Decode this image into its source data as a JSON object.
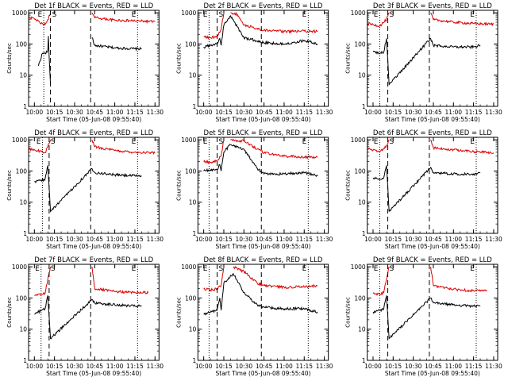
{
  "colors": {
    "events": "#000000",
    "lld": "#dd0000",
    "axes": "#000000"
  },
  "shared": {
    "ylabel": "Counts/sec",
    "xlabel": "Start Time (05-Jun-08 09:55:40)",
    "x_ticks": [
      "10:00",
      "10:15",
      "10:30",
      "10:45",
      "11:00",
      "11:15",
      "11:30"
    ],
    "y_ticks": [
      "1",
      "10",
      "100",
      "1000"
    ],
    "dotted_markers": [
      "E",
      "E"
    ],
    "dashed_marker": "S"
  },
  "chart_data": [
    {
      "type": "line",
      "title": "Det 1f BLACK = Events, RED = LLD",
      "xlim": [
        "09:55:40",
        "11:33:00"
      ],
      "ylim": [
        1,
        1200
      ],
      "y_scale": "log",
      "series": [
        {
          "name": "Events",
          "x": [
            "10:00",
            "10:03",
            "10:06",
            "10:08",
            "10:10",
            "10:10:30",
            "10:11",
            "10:12",
            "10:13",
            "10:43",
            "10:45",
            "11:00",
            "11:15",
            "11:20"
          ],
          "y": [
            null,
            20,
            50,
            50,
            60,
            180,
            40,
            5,
            null,
            160,
            90,
            75,
            70,
            70
          ]
        },
        {
          "name": "LLD",
          "x": [
            "09:56",
            "10:00",
            "10:05",
            "10:08",
            "10:10",
            "10:12",
            "10:43",
            "10:45",
            "11:00",
            "11:15",
            "11:30"
          ],
          "y": [
            700,
            650,
            450,
            420,
            600,
            1000,
            1000,
            700,
            580,
            550,
            520
          ]
        }
      ],
      "markers": {
        "dotted": [
          "10:07",
          "11:17"
        ],
        "dashed": [
          "10:12",
          "10:42"
        ]
      }
    },
    {
      "type": "line",
      "title": "Det 2f BLACK = Events, RED = LLD",
      "xlim": [
        "09:55:40",
        "11:33:00"
      ],
      "ylim": [
        1,
        1200
      ],
      "y_scale": "log",
      "series": [
        {
          "name": "Events",
          "x": [
            "10:00",
            "10:05",
            "10:10",
            "10:12",
            "10:13",
            "10:15",
            "10:20",
            "10:30",
            "10:45",
            "11:00",
            "11:15",
            "11:25"
          ],
          "y": [
            80,
            90,
            100,
            150,
            90,
            400,
            800,
            160,
            110,
            100,
            130,
            100
          ]
        },
        {
          "name": "LLD",
          "x": [
            "10:00",
            "10:05",
            "10:10",
            "10:13",
            "10:15",
            "10:20",
            "10:25",
            "10:30",
            "10:45",
            "11:00",
            "11:15",
            "11:25"
          ],
          "y": [
            170,
            160,
            170,
            300,
            1000,
            1000,
            900,
            400,
            280,
            250,
            260,
            250
          ]
        }
      ],
      "markers": {
        "dotted": [
          "10:04",
          "11:18"
        ],
        "dashed": [
          "10:10",
          "10:43"
        ]
      }
    },
    {
      "type": "line",
      "title": "Det 3f BLACK = Events, RED = LLD",
      "xlim": [
        "09:55:40",
        "11:33:00"
      ],
      "ylim": [
        1,
        1200
      ],
      "y_scale": "log",
      "series": [
        {
          "name": "Events",
          "x": [
            "10:00",
            "10:05",
            "10:08",
            "10:10",
            "10:11",
            "10:12",
            "10:43",
            "10:45",
            "11:00",
            "11:15",
            "11:20"
          ],
          "y": [
            60,
            50,
            55,
            150,
            30,
            5,
            150,
            90,
            80,
            80,
            90
          ]
        },
        {
          "name": "LLD",
          "x": [
            "09:56",
            "10:00",
            "10:05",
            "10:10",
            "10:12",
            "10:43",
            "10:45",
            "11:00",
            "11:15",
            "11:30"
          ],
          "y": [
            450,
            420,
            380,
            600,
            1000,
            1000,
            600,
            500,
            450,
            430
          ]
        }
      ],
      "markers": {
        "dotted": [
          "10:05",
          "11:17"
        ],
        "dashed": [
          "10:11",
          "10:42"
        ]
      }
    },
    {
      "type": "line",
      "title": "Det 4f BLACK = Events, RED = LLD",
      "xlim": [
        "09:55:40",
        "11:33:00"
      ],
      "ylim": [
        1,
        1200
      ],
      "y_scale": "log",
      "series": [
        {
          "name": "Events",
          "x": [
            "10:00",
            "10:05",
            "10:08",
            "10:10",
            "10:11",
            "10:12",
            "10:43",
            "10:45",
            "11:00",
            "11:15",
            "11:20"
          ],
          "y": [
            45,
            50,
            55,
            150,
            30,
            5,
            120,
            90,
            75,
            70,
            70
          ]
        },
        {
          "name": "LLD",
          "x": [
            "09:56",
            "10:00",
            "10:05",
            "10:08",
            "10:10",
            "10:12",
            "10:43",
            "10:45",
            "11:00",
            "11:15",
            "11:30"
          ],
          "y": [
            500,
            480,
            420,
            380,
            600,
            1000,
            1000,
            600,
            450,
            400,
            380
          ]
        }
      ],
      "markers": {
        "dotted": [
          "10:06",
          "11:17"
        ],
        "dashed": [
          "10:11",
          "10:42"
        ]
      }
    },
    {
      "type": "line",
      "title": "Det 5f BLACK = Events, RED = LLD",
      "xlim": [
        "09:55:40",
        "11:33:00"
      ],
      "ylim": [
        1,
        1200
      ],
      "y_scale": "log",
      "series": [
        {
          "name": "Events",
          "x": [
            "10:00",
            "10:05",
            "10:10",
            "10:12",
            "10:13",
            "10:15",
            "10:20",
            "10:30",
            "10:40",
            "10:45",
            "11:00",
            "11:15",
            "11:25"
          ],
          "y": [
            100,
            110,
            110,
            160,
            100,
            400,
            700,
            500,
            120,
            80,
            80,
            90,
            70
          ]
        },
        {
          "name": "LLD",
          "x": [
            "10:00",
            "10:05",
            "10:10",
            "10:13",
            "10:15",
            "10:20",
            "10:30",
            "10:40",
            "10:45",
            "11:00",
            "11:15",
            "11:25"
          ],
          "y": [
            200,
            190,
            220,
            300,
            1000,
            1000,
            900,
            500,
            380,
            300,
            280,
            280
          ]
        }
      ],
      "markers": {
        "dotted": [
          "10:04",
          "11:18"
        ],
        "dashed": [
          "10:10",
          "10:43"
        ]
      }
    },
    {
      "type": "line",
      "title": "Det 6f BLACK = Events, RED = LLD",
      "xlim": [
        "09:55:40",
        "11:33:00"
      ],
      "ylim": [
        1,
        1200
      ],
      "y_scale": "log",
      "series": [
        {
          "name": "Events",
          "x": [
            "10:00",
            "10:05",
            "10:08",
            "10:10",
            "10:11",
            "10:12",
            "10:43",
            "10:45",
            "11:00",
            "11:15",
            "11:20"
          ],
          "y": [
            60,
            55,
            60,
            150,
            30,
            5,
            130,
            90,
            80,
            80,
            90
          ]
        },
        {
          "name": "LLD",
          "x": [
            "09:56",
            "10:00",
            "10:05",
            "10:10",
            "10:12",
            "10:43",
            "10:45",
            "11:00",
            "11:15",
            "11:30"
          ],
          "y": [
            500,
            460,
            400,
            650,
            1000,
            1000,
            550,
            480,
            420,
            380
          ]
        }
      ],
      "markers": {
        "dotted": [
          "10:05",
          "11:17"
        ],
        "dashed": [
          "10:11",
          "10:42"
        ]
      }
    },
    {
      "type": "line",
      "title": "Det 7f BLACK = Events, RED = LLD",
      "xlim": [
        "09:55:40",
        "11:33:00"
      ],
      "ylim": [
        1,
        1200
      ],
      "y_scale": "log",
      "series": [
        {
          "name": "Events",
          "x": [
            "10:00",
            "10:05",
            "10:08",
            "10:10",
            "10:11",
            "10:12",
            "10:43",
            "10:45",
            "11:00",
            "11:15",
            "11:20"
          ],
          "y": [
            30,
            40,
            45,
            120,
            25,
            5,
            90,
            70,
            60,
            55,
            55
          ]
        },
        {
          "name": "LLD",
          "x": [
            "10:00",
            "10:05",
            "10:08",
            "10:10",
            "10:12",
            "10:43",
            "10:45",
            "11:00",
            "11:15",
            "11:25"
          ],
          "y": [
            120,
            130,
            140,
            400,
            1000,
            1000,
            200,
            160,
            150,
            150
          ]
        }
      ],
      "markers": {
        "dotted": [
          "10:05",
          "11:17"
        ],
        "dashed": [
          "10:11",
          "10:42"
        ]
      }
    },
    {
      "type": "line",
      "title": "Det 8f BLACK = Events, RED = LLD",
      "xlim": [
        "09:55:40",
        "11:33:00"
      ],
      "ylim": [
        1,
        1200
      ],
      "y_scale": "log",
      "series": [
        {
          "name": "Events",
          "x": [
            "10:00",
            "10:05",
            "10:10",
            "10:12",
            "10:13",
            "10:15",
            "10:22",
            "10:30",
            "10:40",
            "10:45",
            "11:00",
            "11:15",
            "11:25"
          ],
          "y": [
            30,
            35,
            40,
            100,
            40,
            300,
            600,
            150,
            60,
            50,
            45,
            45,
            35
          ]
        },
        {
          "name": "LLD",
          "x": [
            "10:00",
            "10:05",
            "10:10",
            "10:13",
            "10:15",
            "10:22",
            "10:30",
            "10:40",
            "10:45",
            "11:00",
            "11:15",
            "11:25"
          ],
          "y": [
            200,
            180,
            200,
            250,
            1000,
            1000,
            700,
            300,
            250,
            220,
            230,
            250
          ]
        }
      ],
      "markers": {
        "dotted": [
          "10:04",
          "11:18"
        ],
        "dashed": [
          "10:10",
          "10:43"
        ]
      }
    },
    {
      "type": "line",
      "title": "Det 9f BLACK = Events, RED = LLD",
      "xlim": [
        "09:55:40",
        "11:33:00"
      ],
      "ylim": [
        1,
        1200
      ],
      "y_scale": "log",
      "series": [
        {
          "name": "Events",
          "x": [
            "10:00",
            "10:05",
            "10:08",
            "10:10",
            "10:11",
            "10:12",
            "10:43",
            "10:45",
            "11:00",
            "11:15",
            "11:20"
          ],
          "y": [
            35,
            40,
            45,
            120,
            25,
            5,
            100,
            70,
            60,
            55,
            55
          ]
        },
        {
          "name": "LLD",
          "x": [
            "10:00",
            "10:05",
            "10:08",
            "10:10",
            "10:12",
            "10:43",
            "10:45",
            "11:00",
            "11:15",
            "11:25"
          ],
          "y": [
            140,
            130,
            150,
            400,
            1000,
            1000,
            250,
            190,
            170,
            170
          ]
        }
      ],
      "markers": {
        "dotted": [
          "10:05",
          "11:17"
        ],
        "dashed": [
          "10:11",
          "10:42"
        ]
      }
    }
  ]
}
